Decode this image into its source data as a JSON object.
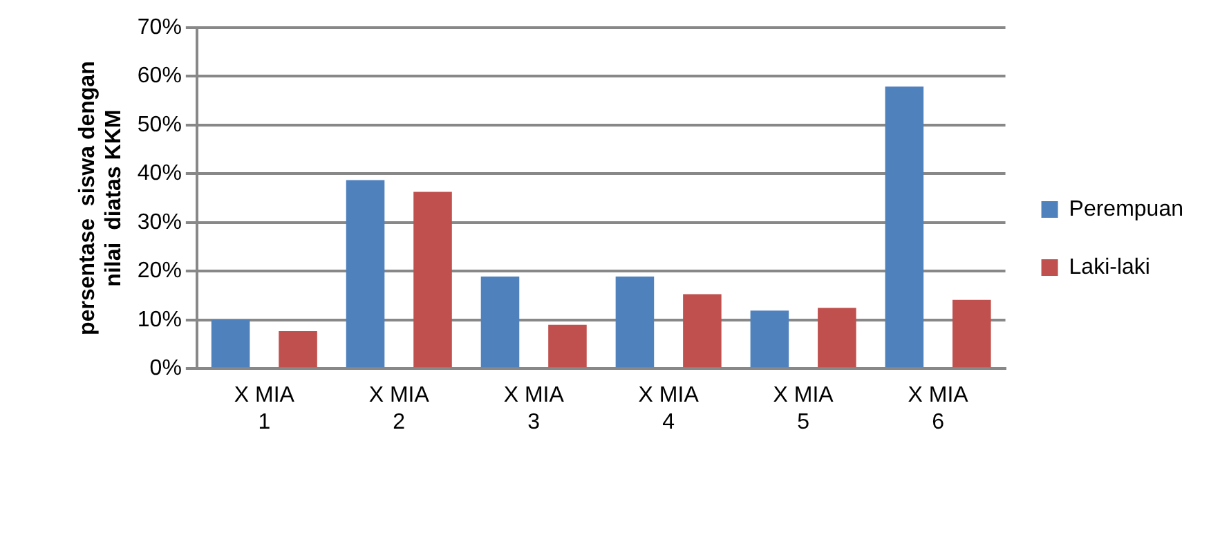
{
  "chart_data": {
    "type": "bar",
    "ylabel": "persentase  siswa dengan nilai  diatas KKM",
    "categories": [
      "X MIA 1",
      "X MIA 2",
      "X MIA 3",
      "X MIA 4",
      "X MIA 5",
      "X MIA 6"
    ],
    "series": [
      {
        "name": "Perempuan",
        "color": "#4f81bd",
        "values": [
          10,
          38.7,
          18.9,
          18.9,
          11.9,
          57.9
        ]
      },
      {
        "name": "Laki-laki",
        "color": "#c0504d",
        "values": [
          7.7,
          36.3,
          9.0,
          15.3,
          12.5,
          14.1
        ]
      }
    ],
    "ylim": [
      0,
      70
    ],
    "yticks": [
      {
        "value": 0,
        "label": "0%"
      },
      {
        "value": 10,
        "label": "10%"
      },
      {
        "value": 20,
        "label": "20%"
      },
      {
        "value": 30,
        "label": "30%"
      },
      {
        "value": 40,
        "label": "40%"
      },
      {
        "value": 50,
        "label": "50%"
      },
      {
        "value": 60,
        "label": "60%"
      },
      {
        "value": 70,
        "label": "70%"
      }
    ],
    "grid": "y",
    "legend": "right"
  }
}
